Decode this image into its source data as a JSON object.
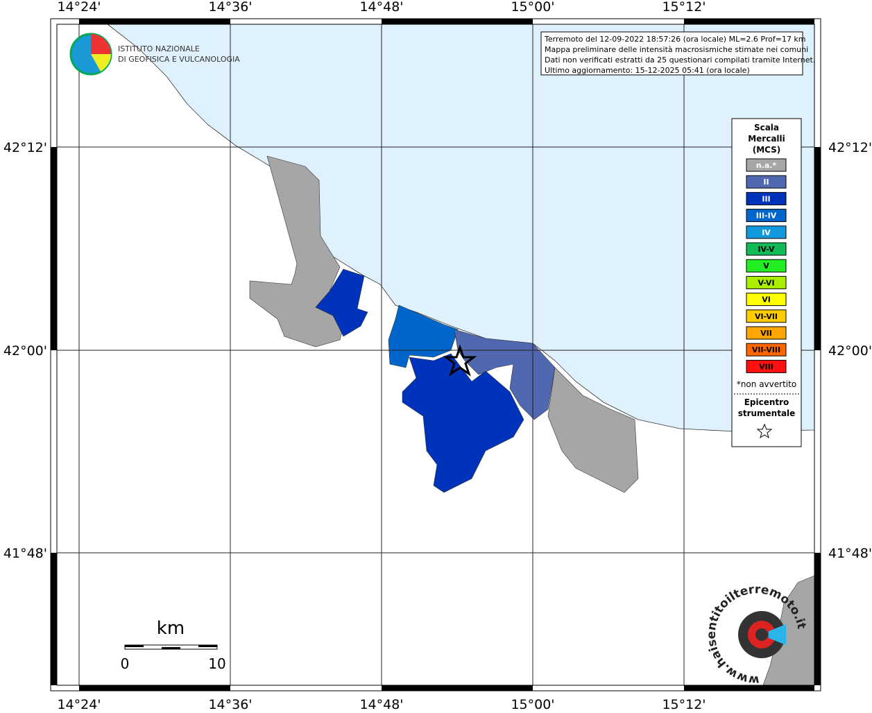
{
  "map": {
    "lon_ticks": [
      "14°24'",
      "14°36'",
      "14°48'",
      "15°00'",
      "15°12'"
    ],
    "lat_ticks": [
      "42°12'",
      "42°00'",
      "41°48'"
    ],
    "logo": {
      "line1": "ISTITUTO NAZIONALE",
      "line2": "DI GEOFISICA E VULCANOLOGIA"
    },
    "info": [
      "Terremoto del 12-09-2022 18:57:26 (ora locale) ML=2.6 Prof=17 km",
      "Mappa preliminare delle intensità macrosismiche stimate nei comuni",
      "Dati non verificati estratti da 25 questionari compilati tramite Internet.",
      "Ultimo aggiornamento: 15-12-2025 05:41 (ora locale)"
    ],
    "legend": {
      "title": [
        "Scala",
        "Mercalli",
        "(MCS)"
      ],
      "items": [
        {
          "label": "n.a.*",
          "color": "#a6a6a6"
        },
        {
          "label": "II",
          "color": "#4f68b0"
        },
        {
          "label": "III",
          "color": "#0033bb"
        },
        {
          "label": "III-IV",
          "color": "#0066cc"
        },
        {
          "label": "IV",
          "color": "#1199dd"
        },
        {
          "label": "IV-V",
          "color": "#11bb55"
        },
        {
          "label": "V",
          "color": "#22ee22"
        },
        {
          "label": "V-VI",
          "color": "#aaee00"
        },
        {
          "label": "VI",
          "color": "#ffff00"
        },
        {
          "label": "VI-VII",
          "color": "#ffcc00"
        },
        {
          "label": "VII",
          "color": "#ffa500"
        },
        {
          "label": "VII-VIII",
          "color": "#ff6600"
        },
        {
          "label": "VIII",
          "color": "#ff1111"
        }
      ],
      "note": "*non avvertito",
      "epicenter": [
        "Epicentro",
        "strumentale"
      ]
    },
    "scale": {
      "unit": "km",
      "start": "0",
      "end": "10"
    },
    "site": "www.haisentitoilterremoto.it"
  }
}
